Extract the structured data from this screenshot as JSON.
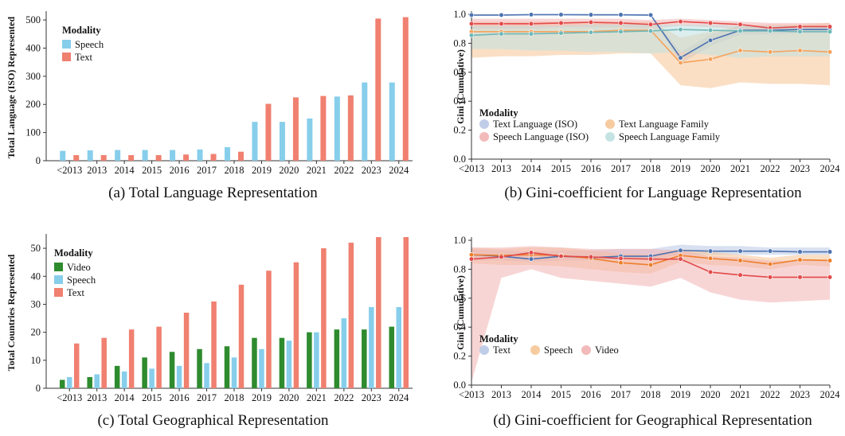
{
  "colors": {
    "speech_bar": "#87CEEB",
    "text_bar": "#F08070",
    "video_bar": "#2E8B2E",
    "text_line": "#4C72B0",
    "speech_line": "#ED7F2C",
    "video_line": "#E24A4A",
    "teal_line": "#6FB8B8",
    "text_family_line": "#F5A35C",
    "text_band": "#B9C8E6",
    "speech_band": "#F6C596",
    "video_band": "#F2B3B3",
    "teal_band": "#BFE0E0"
  },
  "chart_data": [
    {
      "id": "a",
      "type": "bar",
      "caption": "(a) Total Language Representation",
      "ylabel": "Total Language (ISO) Represented",
      "categories": [
        "<2013",
        "2013",
        "2014",
        "2015",
        "2016",
        "2017",
        "2018",
        "2019",
        "2020",
        "2021",
        "2022",
        "2023",
        "2024"
      ],
      "ylim": [
        0,
        520
      ],
      "yticks": [
        0,
        100,
        200,
        300,
        400,
        500
      ],
      "legend_title": "Modality",
      "legend_position": "top-left",
      "series": [
        {
          "name": "Speech",
          "color": "#87CEEB",
          "values": [
            35,
            37,
            38,
            38,
            38,
            40,
            48,
            138,
            138,
            150,
            228,
            278,
            278
          ]
        },
        {
          "name": "Text",
          "color": "#F08070",
          "values": [
            20,
            20,
            20,
            20,
            22,
            24,
            32,
            202,
            225,
            230,
            232,
            505,
            510
          ]
        }
      ]
    },
    {
      "id": "b",
      "type": "line",
      "caption": "(b) Gini-coefficient for Language Representation",
      "ylabel": "Gini (Cumulative)",
      "x": [
        "<2013",
        "2013",
        "2014",
        "2015",
        "2016",
        "2017",
        "2018",
        "2019",
        "2020",
        "2021",
        "2022",
        "2023",
        "2024"
      ],
      "ylim": [
        0,
        1.0
      ],
      "yticks": [
        "0.0",
        "0.2",
        "0.4",
        "0.6",
        "0.8",
        "1.0"
      ],
      "legend_title": "Modality",
      "legend_position": "bottom-left",
      "series": [
        {
          "name": "Text Language (ISO)",
          "color": "#4C72B0",
          "band": "#B9C8E6",
          "values": [
            0.995,
            0.995,
            0.998,
            0.998,
            0.997,
            0.997,
            0.995,
            0.7,
            0.82,
            0.89,
            0.89,
            0.895,
            0.895
          ],
          "lower": [
            0.99,
            0.99,
            0.99,
            0.99,
            0.99,
            0.99,
            0.99,
            0.66,
            0.78,
            0.86,
            0.86,
            0.87,
            0.87
          ],
          "upper": [
            1.0,
            1.0,
            1.0,
            1.0,
            1.0,
            1.0,
            1.0,
            0.74,
            0.86,
            0.92,
            0.92,
            0.92,
            0.92
          ]
        },
        {
          "name": "Text Language Family",
          "color": "#F5A35C",
          "band": "#F6C596",
          "values": [
            0.88,
            0.88,
            0.88,
            0.88,
            0.88,
            0.89,
            0.89,
            0.665,
            0.69,
            0.75,
            0.74,
            0.75,
            0.74
          ],
          "lower": [
            0.7,
            0.71,
            0.71,
            0.72,
            0.72,
            0.73,
            0.73,
            0.51,
            0.49,
            0.53,
            0.52,
            0.52,
            0.51
          ],
          "upper": [
            0.95,
            0.95,
            0.95,
            0.95,
            0.95,
            0.95,
            0.95,
            0.84,
            0.88,
            0.92,
            0.93,
            0.93,
            0.94
          ]
        },
        {
          "name": "Speech Language (ISO)",
          "color": "#E24A4A",
          "band": "#F2B3B3",
          "values": [
            0.935,
            0.935,
            0.935,
            0.94,
            0.945,
            0.94,
            0.93,
            0.95,
            0.94,
            0.93,
            0.905,
            0.915,
            0.915
          ],
          "lower": [
            0.9,
            0.9,
            0.9,
            0.91,
            0.91,
            0.91,
            0.9,
            0.92,
            0.91,
            0.9,
            0.88,
            0.89,
            0.89
          ],
          "upper": [
            0.97,
            0.97,
            0.97,
            0.97,
            0.97,
            0.97,
            0.96,
            0.97,
            0.96,
            0.95,
            0.94,
            0.94,
            0.94
          ]
        },
        {
          "name": "Speech Language Family",
          "color": "#6FB8B8",
          "band": "#BFE0E0",
          "values": [
            0.855,
            0.865,
            0.865,
            0.87,
            0.875,
            0.88,
            0.885,
            0.895,
            0.89,
            0.885,
            0.885,
            0.88,
            0.88
          ],
          "lower": [
            0.76,
            0.76,
            0.75,
            0.75,
            0.74,
            0.74,
            0.73,
            0.74,
            0.72,
            0.7,
            0.71,
            0.71,
            0.71
          ],
          "upper": [
            0.92,
            0.92,
            0.92,
            0.92,
            0.93,
            0.93,
            0.93,
            0.93,
            0.93,
            0.92,
            0.92,
            0.92,
            0.92
          ]
        }
      ]
    },
    {
      "id": "c",
      "type": "bar",
      "caption": "(c) Total Geographical Representation",
      "ylabel": "Total Countries Represented",
      "categories": [
        "<2013",
        "2013",
        "2014",
        "2015",
        "2016",
        "2017",
        "2018",
        "2019",
        "2020",
        "2021",
        "2022",
        "2023",
        "2024"
      ],
      "ylim": [
        0,
        54
      ],
      "yticks": [
        0,
        10,
        20,
        30,
        40,
        50
      ],
      "legend_title": "Modality",
      "legend_position": "top-left",
      "series": [
        {
          "name": "Video",
          "color": "#2E8B2E",
          "values": [
            3,
            4,
            8,
            11,
            13,
            14,
            15,
            18,
            18,
            20,
            21,
            21,
            22
          ]
        },
        {
          "name": "Speech",
          "color": "#87CEEB",
          "values": [
            4,
            5,
            6,
            7,
            8,
            9,
            11,
            14,
            17,
            20,
            25,
            29,
            29
          ]
        },
        {
          "name": "Text",
          "color": "#F08070",
          "values": [
            16,
            18,
            21,
            22,
            27,
            31,
            37,
            42,
            45,
            50,
            52,
            54,
            54
          ]
        }
      ]
    },
    {
      "id": "d",
      "type": "line",
      "caption": "(d) Gini-coefficient for Geographical Representation",
      "ylabel": "Gini (Cumulative)",
      "x": [
        "<2013",
        "2013",
        "2014",
        "2015",
        "2016",
        "2017",
        "2018",
        "2019",
        "2020",
        "2021",
        "2022",
        "2023",
        "2024"
      ],
      "ylim": [
        0,
        1.0
      ],
      "yticks": [
        "0.0",
        "0.2",
        "0.4",
        "0.6",
        "0.8",
        "1.0"
      ],
      "legend_title": "Modality",
      "legend_position": "bottom-left",
      "series": [
        {
          "name": "Text",
          "color": "#4C72B0",
          "band": "#B9C8E6",
          "values": [
            0.9,
            0.89,
            0.87,
            0.89,
            0.88,
            0.89,
            0.89,
            0.93,
            0.925,
            0.925,
            0.925,
            0.92,
            0.92
          ],
          "lower": [
            0.86,
            0.86,
            0.85,
            0.86,
            0.86,
            0.87,
            0.87,
            0.9,
            0.9,
            0.9,
            0.9,
            0.9,
            0.9
          ],
          "upper": [
            0.94,
            0.93,
            0.92,
            0.93,
            0.93,
            0.94,
            0.94,
            0.97,
            0.96,
            0.96,
            0.95,
            0.95,
            0.95
          ]
        },
        {
          "name": "Speech",
          "color": "#ED7F2C",
          "band": "#F6C596",
          "values": [
            0.9,
            0.895,
            0.9,
            0.895,
            0.875,
            0.845,
            0.83,
            0.895,
            0.875,
            0.86,
            0.835,
            0.865,
            0.86
          ],
          "lower": [
            0.84,
            0.83,
            0.83,
            0.82,
            0.8,
            0.78,
            0.77,
            0.85,
            0.83,
            0.82,
            0.8,
            0.83,
            0.82
          ],
          "upper": [
            0.95,
            0.94,
            0.95,
            0.95,
            0.93,
            0.91,
            0.9,
            0.94,
            0.92,
            0.9,
            0.88,
            0.9,
            0.9
          ]
        },
        {
          "name": "Video",
          "color": "#E24A4A",
          "band": "#F2B3B3",
          "values": [
            0.87,
            0.885,
            0.915,
            0.89,
            0.885,
            0.875,
            0.87,
            0.87,
            0.78,
            0.76,
            0.745,
            0.745,
            0.745
          ],
          "lower": [
            0.02,
            0.74,
            0.8,
            0.74,
            0.72,
            0.7,
            0.68,
            0.74,
            0.64,
            0.59,
            0.57,
            0.58,
            0.59
          ],
          "upper": [
            0.95,
            0.95,
            0.96,
            0.95,
            0.94,
            0.94,
            0.94,
            0.93,
            0.89,
            0.88,
            0.86,
            0.86,
            0.86
          ]
        }
      ]
    }
  ]
}
